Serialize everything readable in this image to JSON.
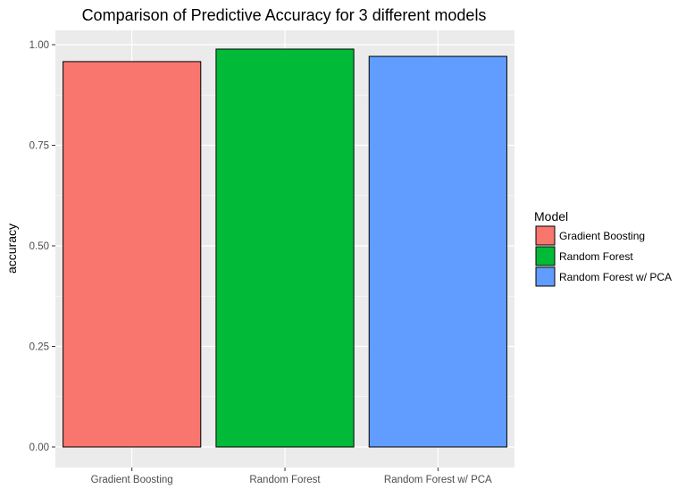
{
  "chart_data": {
    "type": "bar",
    "title": "Comparison of Predictive Accuracy for 3 different models",
    "xlabel": "",
    "ylabel": "accuracy",
    "ylim": [
      0,
      1.05
    ],
    "yticks": [
      "0.00",
      "0.25",
      "0.50",
      "0.75",
      "1.00"
    ],
    "ytick_values": [
      0,
      0.25,
      0.5,
      0.75,
      1.0
    ],
    "categories": [
      "Gradient Boosting",
      "Random Forest",
      "Random Forest w/ PCA"
    ],
    "values": [
      0.958,
      0.989,
      0.971
    ],
    "colors": [
      "#F8766D",
      "#00BA38",
      "#619CFF"
    ],
    "grid": true,
    "legend": {
      "title": "Model",
      "placement": "right",
      "entries": [
        "Gradient Boosting",
        "Random Forest",
        "Random Forest w/ PCA"
      ]
    }
  }
}
